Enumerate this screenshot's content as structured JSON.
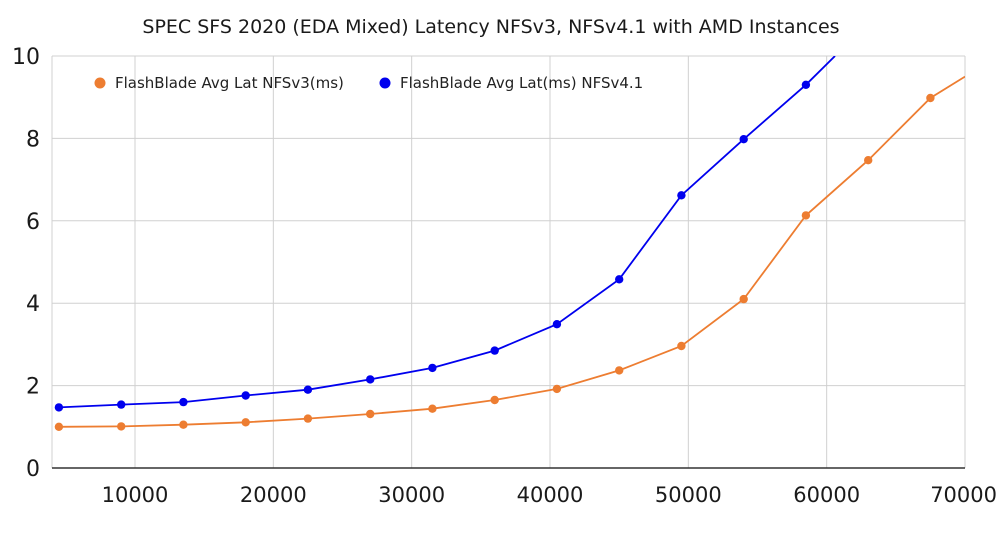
{
  "chart_data": {
    "type": "line",
    "title": "SPEC SFS 2020 (EDA Mixed) Latency NFSv3, NFSv4.1 with AMD Instances",
    "xlabel": "",
    "ylabel": "",
    "xlim": [
      4000,
      70000
    ],
    "ylim": [
      0,
      10
    ],
    "x_ticks": [
      10000,
      20000,
      30000,
      40000,
      50000,
      60000,
      70000
    ],
    "x_tick_labels": [
      "10000",
      "20000",
      "30000",
      "40000",
      "50000",
      "60000",
      "70000"
    ],
    "y_ticks": [
      0,
      2,
      4,
      6,
      8,
      10
    ],
    "y_tick_labels": [
      "0",
      "2",
      "4",
      "6",
      "8",
      "10"
    ],
    "grid": true,
    "legend_position": "top-left",
    "series": [
      {
        "name": "FlashBlade Avg Lat NFSv3(ms)",
        "color": "#ed7d31",
        "points": [
          [
            4500,
            1.0
          ],
          [
            9000,
            1.01
          ],
          [
            13500,
            1.05
          ],
          [
            18000,
            1.11
          ],
          [
            22500,
            1.2
          ],
          [
            27000,
            1.31
          ],
          [
            31500,
            1.44
          ],
          [
            36000,
            1.65
          ],
          [
            40500,
            1.92
          ],
          [
            45000,
            2.37
          ],
          [
            49500,
            2.96
          ],
          [
            54000,
            4.1
          ],
          [
            58500,
            6.13
          ],
          [
            63000,
            7.47
          ],
          [
            67500,
            8.98
          ],
          [
            70000,
            9.5
          ]
        ]
      },
      {
        "name": "FlashBlade Avg Lat(ms) NFSv4.1",
        "color": "#0000ee",
        "points": [
          [
            4500,
            1.47
          ],
          [
            9000,
            1.54
          ],
          [
            13500,
            1.6
          ],
          [
            18000,
            1.76
          ],
          [
            22500,
            1.9
          ],
          [
            27000,
            2.15
          ],
          [
            31500,
            2.43
          ],
          [
            36000,
            2.85
          ],
          [
            40500,
            3.49
          ],
          [
            45000,
            4.58
          ],
          [
            49500,
            6.62
          ],
          [
            54000,
            7.98
          ],
          [
            58500,
            9.3
          ],
          [
            60600,
            10.0
          ]
        ]
      }
    ]
  }
}
